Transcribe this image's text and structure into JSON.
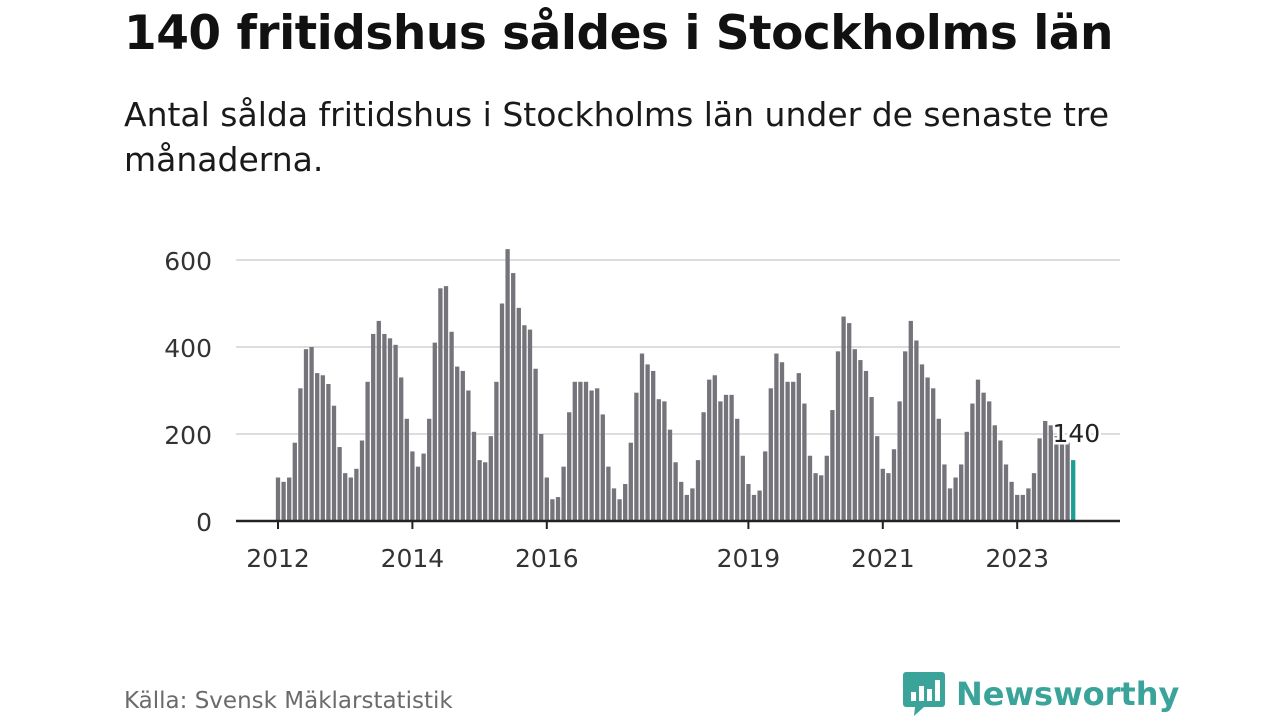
{
  "header": {
    "title": "140 fritidshus såldes i Stockholms län",
    "subtitle": "Antal sålda fritidshus i Stockholms län under de senaste tre månaderna."
  },
  "footer": {
    "source": "Källa: Svensk Mäklarstatistik",
    "brand": "Newsworthy"
  },
  "colors": {
    "bar": "#75747b",
    "highlight": "#1d9e95",
    "grid": "#dddddd",
    "brand": "#3aa39a"
  },
  "chart_data": {
    "type": "bar",
    "title": "140 fritidshus såldes i Stockholms län",
    "subtitle": "Antal sålda fritidshus i Stockholms län under de senaste tre månaderna.",
    "xlabel": "",
    "ylabel": "",
    "ylim": [
      0,
      640
    ],
    "yticks": [
      0,
      200,
      400,
      600
    ],
    "grid": true,
    "start": "2012-01",
    "x_tick_labels": [
      {
        "label": "2012",
        "index": 0
      },
      {
        "label": "2014",
        "index": 24
      },
      {
        "label": "2016",
        "index": 48
      },
      {
        "label": "2019",
        "index": 84
      },
      {
        "label": "2021",
        "index": 108
      },
      {
        "label": "2023",
        "index": 132
      }
    ],
    "values": [
      100,
      90,
      100,
      180,
      305,
      395,
      400,
      340,
      335,
      315,
      265,
      170,
      110,
      100,
      120,
      185,
      320,
      430,
      460,
      430,
      420,
      405,
      330,
      235,
      160,
      125,
      155,
      235,
      410,
      535,
      540,
      435,
      355,
      345,
      300,
      205,
      140,
      135,
      195,
      320,
      500,
      625,
      570,
      490,
      450,
      440,
      350,
      200,
      100,
      50,
      55,
      125,
      250,
      320,
      320,
      320,
      300,
      305,
      245,
      125,
      75,
      50,
      85,
      180,
      295,
      385,
      360,
      345,
      280,
      275,
      210,
      135,
      90,
      60,
      75,
      140,
      250,
      325,
      335,
      275,
      290,
      290,
      235,
      150,
      85,
      60,
      70,
      160,
      305,
      385,
      365,
      320,
      320,
      340,
      270,
      150,
      110,
      105,
      150,
      255,
      390,
      470,
      455,
      395,
      370,
      345,
      285,
      195,
      120,
      110,
      165,
      275,
      390,
      460,
      415,
      360,
      330,
      305,
      235,
      130,
      75,
      100,
      130,
      205,
      270,
      325,
      295,
      275,
      220,
      185,
      130,
      90,
      60,
      60,
      75,
      110,
      190,
      230,
      220,
      195,
      185,
      180,
      140
    ],
    "highlight": {
      "index": 142,
      "value": 140,
      "label": "140"
    }
  }
}
